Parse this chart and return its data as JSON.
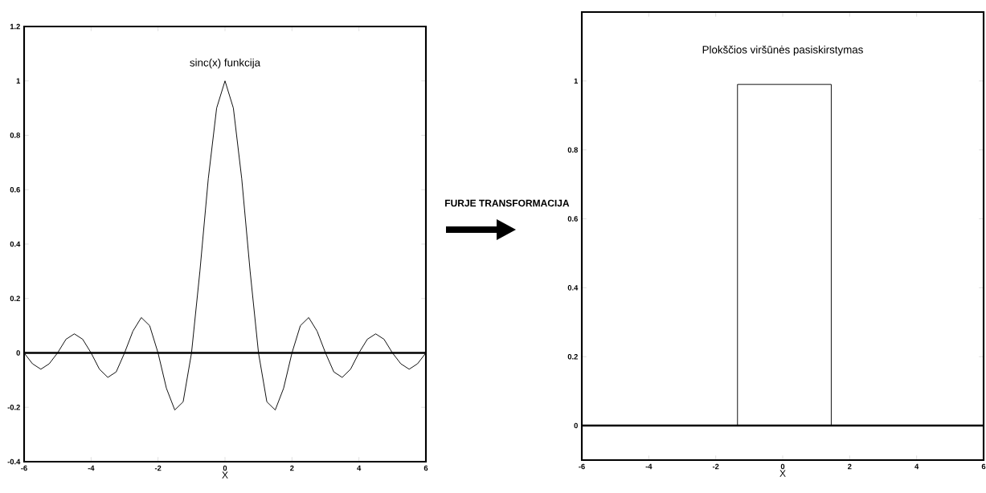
{
  "chart_data": [
    {
      "type": "line",
      "title": "sinc(x) funkcija",
      "xlabel": "X",
      "x": [
        -6,
        -5.75,
        -5.5,
        -5.25,
        -5,
        -4.75,
        -4.5,
        -4.25,
        -4,
        -3.75,
        -3.5,
        -3.25,
        -3,
        -2.75,
        -2.5,
        -2.25,
        -2,
        -1.75,
        -1.5,
        -1.25,
        -1,
        -0.75,
        -0.5,
        -0.25,
        0,
        0.25,
        0.5,
        0.75,
        1,
        1.25,
        1.5,
        1.75,
        2,
        2.25,
        2.5,
        2.75,
        3,
        3.25,
        3.5,
        3.75,
        4,
        4.25,
        4.5,
        4.75,
        5,
        5.25,
        5.5,
        5.75,
        6
      ],
      "series": [
        {
          "color": "#000000",
          "values": [
            0,
            -0.04,
            -0.06,
            -0.04,
            0,
            0.05,
            0.07,
            0.05,
            0,
            -0.06,
            -0.09,
            -0.07,
            0,
            0.08,
            0.13,
            0.1,
            0,
            -0.13,
            -0.21,
            -0.18,
            0,
            0.3,
            0.64,
            0.9,
            1,
            0.9,
            0.64,
            0.3,
            0,
            -0.18,
            -0.21,
            -0.13,
            0,
            0.1,
            0.13,
            0.08,
            0,
            -0.07,
            -0.09,
            -0.06,
            0,
            0.05,
            0.07,
            0.05,
            0,
            -0.04,
            -0.06,
            -0.04,
            0
          ]
        }
      ],
      "xlim": [
        -6,
        6
      ],
      "ylim": [
        -0.4,
        1.2
      ],
      "xticks": [
        -6,
        -4,
        -2,
        0,
        2,
        4,
        6
      ],
      "yticks": [
        -0.4,
        -0.2,
        0,
        0.2,
        0.4,
        0.6,
        0.8,
        1,
        1.2
      ],
      "ref_lines": [
        {
          "axis": "y",
          "value": 0
        }
      ],
      "annotations": [
        "FURJE TRANSFORMACIJA"
      ],
      "grid": false,
      "marker": "none",
      "line_style": "solid"
    },
    {
      "type": "line",
      "title": "Plokščios viršūnės pasiskirstymas",
      "xlabel": "X",
      "x": [
        -6,
        -1.35,
        -1.35,
        1.45,
        1.45,
        6
      ],
      "series": [
        {
          "color": "#000000",
          "values": [
            0,
            0,
            0.99,
            0.99,
            0,
            0
          ]
        }
      ],
      "xlim": [
        -6,
        6
      ],
      "ylim": [
        -0.1,
        1.2
      ],
      "xticks": [
        -6,
        -4,
        -2,
        0,
        2,
        4,
        6
      ],
      "yticks": [
        0,
        0.2,
        0.4,
        0.6,
        0.8,
        1
      ],
      "ref_lines": [
        {
          "axis": "y",
          "value": 0
        }
      ],
      "grid": false,
      "marker": "none",
      "line_style": "solid"
    }
  ]
}
